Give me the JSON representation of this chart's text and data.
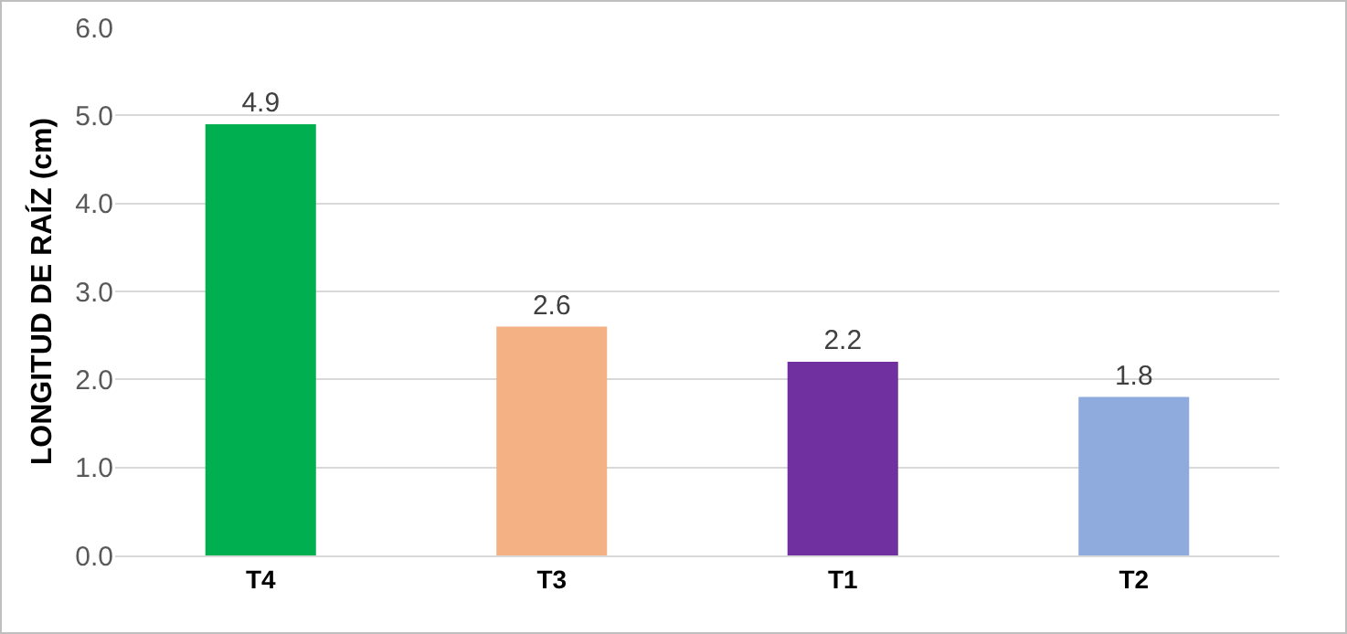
{
  "chart_data": {
    "type": "bar",
    "ylabel": "LONGITUD DE RAÍZ (cm)",
    "categories": [
      "T4",
      "T3",
      "T1",
      "T2"
    ],
    "values": [
      4.9,
      2.6,
      2.2,
      1.8
    ],
    "colors": [
      "#00b050",
      "#f4b183",
      "#7030a0",
      "#8faadc"
    ],
    "ylim": [
      0,
      6
    ],
    "yticks": [
      {
        "value": 0,
        "label": "0.0"
      },
      {
        "value": 1,
        "label": "1.0"
      },
      {
        "value": 2,
        "label": "2.0"
      },
      {
        "value": 3,
        "label": "3.0"
      },
      {
        "value": 4,
        "label": "4.0"
      },
      {
        "value": 5,
        "label": "5.0"
      },
      {
        "value": 6,
        "label": "6.0"
      }
    ],
    "grid": "y",
    "data_labels": true
  }
}
